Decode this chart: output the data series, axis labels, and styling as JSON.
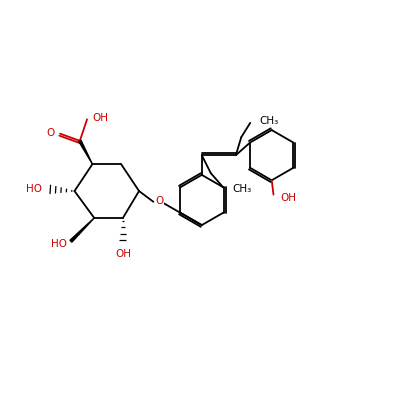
{
  "background_color": "#ffffff",
  "bond_color": "#000000",
  "red_color": "#cc0000",
  "line_width": 1.3,
  "font_size": 7.5,
  "figsize": [
    4.0,
    4.0
  ],
  "dpi": 100,
  "xlim": [
    -5,
    105
  ],
  "ylim": [
    20,
    90
  ]
}
